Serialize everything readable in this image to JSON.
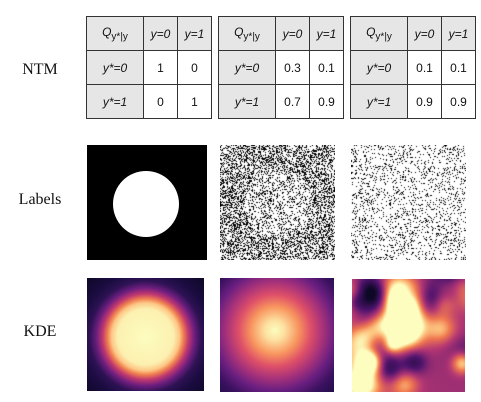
{
  "row_labels": {
    "ntm": "NTM",
    "labels": "Labels",
    "kde": "KDE"
  },
  "tables": [
    {
      "header": {
        "q_symbol": "Q",
        "q_subscript": "y*|y",
        "col0": "y=0",
        "col1": "y=1"
      },
      "rows": [
        {
          "label": "y*=0",
          "v0": "1",
          "v1": "0"
        },
        {
          "label": "y*=1",
          "v0": "0",
          "v1": "1"
        }
      ]
    },
    {
      "header": {
        "q_symbol": "Q",
        "q_subscript": "y*|y",
        "col0": "y=0",
        "col1": "y=1"
      },
      "rows": [
        {
          "label": "y*=0",
          "v0": "0.3",
          "v1": "0.1"
        },
        {
          "label": "y*=1",
          "v0": "0.7",
          "v1": "0.9"
        }
      ]
    },
    {
      "header": {
        "q_symbol": "Q",
        "q_subscript": "y*|y",
        "col0": "y=0",
        "col1": "y=1"
      },
      "rows": [
        {
          "label": "y*=0",
          "v0": "0.1",
          "v1": "0.1"
        },
        {
          "label": "y*=1",
          "v0": "0.9",
          "v1": "0.9"
        }
      ]
    }
  ],
  "colors": {
    "black": "#000000",
    "white": "#ffffff",
    "table_header_bg": "#e6e6e6",
    "magma_dark": "#1b0c41",
    "magma_purple": "#711f81",
    "magma_orange": "#f07f4f",
    "magma_light": "#fcfdbf"
  }
}
